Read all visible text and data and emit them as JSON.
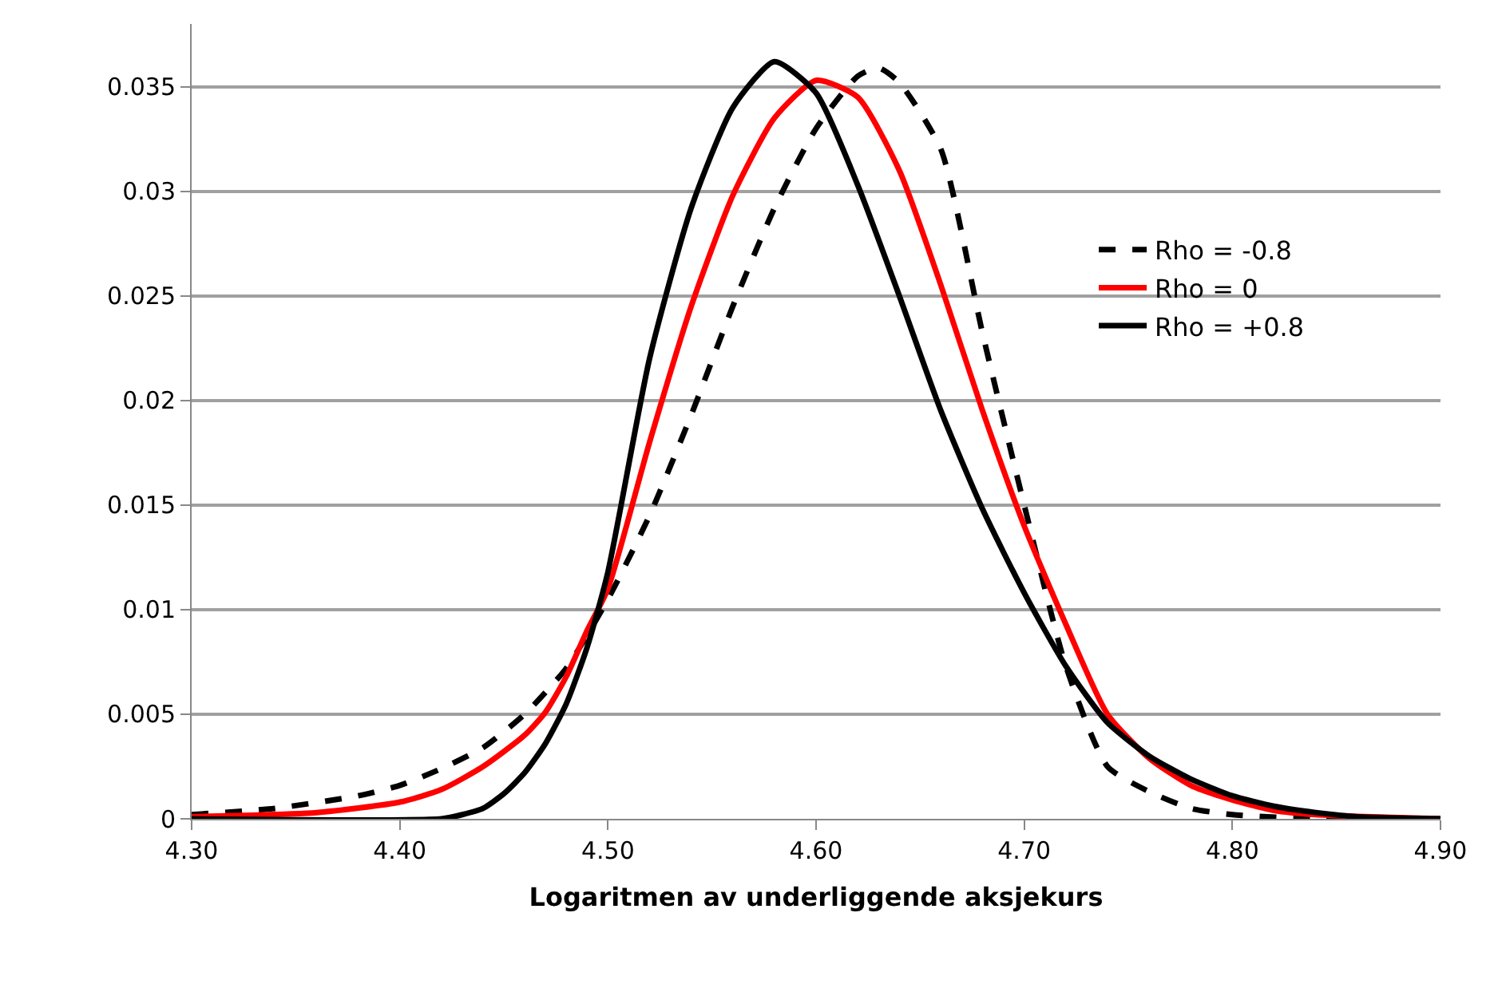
{
  "chart_data": {
    "type": "line",
    "xlabel": "Logaritmen av underliggende aksjekurs",
    "xlim": [
      4.3,
      4.9
    ],
    "xticks": [
      {
        "value": 4.3,
        "label": "4.30"
      },
      {
        "value": 4.4,
        "label": "4.40"
      },
      {
        "value": 4.5,
        "label": "4.50"
      },
      {
        "value": 4.6,
        "label": "4.60"
      },
      {
        "value": 4.7,
        "label": "4.70"
      },
      {
        "value": 4.8,
        "label": "4.80"
      },
      {
        "value": 4.9,
        "label": "4.90"
      }
    ],
    "ylim": [
      0,
      0.038
    ],
    "yticks": [
      0,
      0.005,
      0.01,
      0.015,
      0.02,
      0.025,
      0.03,
      0.035
    ],
    "grid": "y",
    "legend": "right",
    "marker": "none",
    "series": [
      {
        "name": "Rho = -0.8",
        "color": "#000000",
        "line_style": "dashed",
        "x": [
          4.3,
          4.34,
          4.38,
          4.4,
          4.42,
          4.44,
          4.46,
          4.48,
          4.5,
          4.52,
          4.54,
          4.56,
          4.58,
          4.6,
          4.62,
          4.63,
          4.64,
          4.66,
          4.68,
          4.7,
          4.72,
          4.74,
          4.76,
          4.78,
          4.8,
          4.84,
          4.9
        ],
        "values": [
          0.0002,
          0.0005,
          0.0011,
          0.0016,
          0.0024,
          0.0034,
          0.005,
          0.0072,
          0.0105,
          0.0145,
          0.0193,
          0.0245,
          0.0292,
          0.033,
          0.0355,
          0.0359,
          0.0352,
          0.032,
          0.0232,
          0.015,
          0.0073,
          0.0025,
          0.0013,
          0.0005,
          0.0002,
          0.0,
          0.0
        ]
      },
      {
        "name": "Rho = 0",
        "color": "#ff0000",
        "line_style": "solid",
        "x": [
          4.3,
          4.36,
          4.4,
          4.42,
          4.44,
          4.46,
          4.47,
          4.48,
          4.49,
          4.5,
          4.52,
          4.54,
          4.56,
          4.58,
          4.6,
          4.62,
          4.64,
          4.66,
          4.68,
          4.7,
          4.72,
          4.74,
          4.76,
          4.78,
          4.8,
          4.82,
          4.84,
          4.9
        ],
        "values": [
          0.0001,
          0.0003,
          0.0008,
          0.0014,
          0.0025,
          0.004,
          0.0051,
          0.0068,
          0.009,
          0.011,
          0.018,
          0.0245,
          0.0298,
          0.0335,
          0.0353,
          0.0345,
          0.031,
          0.0255,
          0.0195,
          0.014,
          0.0093,
          0.005,
          0.0029,
          0.0016,
          0.0009,
          0.0004,
          0.0002,
          0.0
        ]
      },
      {
        "name": "Rho = +0.8",
        "color": "#000000",
        "line_style": "solid",
        "x": [
          4.3,
          4.42,
          4.43,
          4.44,
          4.45,
          4.46,
          4.47,
          4.48,
          4.49,
          4.5,
          4.52,
          4.54,
          4.56,
          4.58,
          4.6,
          4.62,
          4.64,
          4.66,
          4.68,
          4.7,
          4.72,
          4.74,
          4.76,
          4.78,
          4.8,
          4.82,
          4.84,
          4.86,
          4.9
        ],
        "values": [
          0.0,
          0.0,
          0.0002,
          0.0005,
          0.0012,
          0.0022,
          0.0036,
          0.0055,
          0.0082,
          0.0118,
          0.022,
          0.0292,
          0.034,
          0.0362,
          0.0347,
          0.0303,
          0.025,
          0.0195,
          0.0148,
          0.0108,
          0.0073,
          0.0046,
          0.003,
          0.0019,
          0.0011,
          0.0006,
          0.0003,
          0.0001,
          0.0
        ]
      }
    ]
  }
}
